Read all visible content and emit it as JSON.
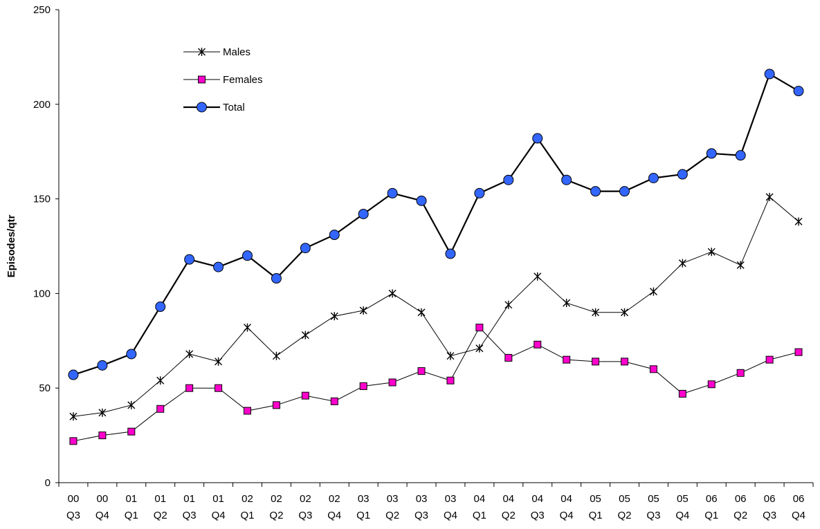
{
  "chart_data": {
    "type": "line",
    "title": "",
    "xlabel": "",
    "ylabel": "Episodes/qtr",
    "ylim": [
      0,
      250
    ],
    "yticks": [
      0,
      50,
      100,
      150,
      200,
      250
    ],
    "grid": false,
    "legend_position": "top-left",
    "categories": [
      [
        "00",
        "Q3"
      ],
      [
        "00",
        "Q4"
      ],
      [
        "01",
        "Q1"
      ],
      [
        "01",
        "Q2"
      ],
      [
        "01",
        "Q3"
      ],
      [
        "01",
        "Q4"
      ],
      [
        "02",
        "Q1"
      ],
      [
        "02",
        "Q2"
      ],
      [
        "02",
        "Q3"
      ],
      [
        "02",
        "Q4"
      ],
      [
        "03",
        "Q1"
      ],
      [
        "03",
        "Q2"
      ],
      [
        "03",
        "Q3"
      ],
      [
        "03",
        "Q4"
      ],
      [
        "04",
        "Q1"
      ],
      [
        "04",
        "Q2"
      ],
      [
        "04",
        "Q3"
      ],
      [
        "04",
        "Q4"
      ],
      [
        "05",
        "Q1"
      ],
      [
        "05",
        "Q2"
      ],
      [
        "05",
        "Q3"
      ],
      [
        "05",
        "Q4"
      ],
      [
        "06",
        "Q1"
      ],
      [
        "06",
        "Q2"
      ],
      [
        "06",
        "Q3"
      ],
      [
        "06",
        "Q4"
      ]
    ],
    "series": [
      {
        "name": "Males",
        "marker": "star",
        "color": "#000000",
        "values": [
          35,
          37,
          41,
          54,
          68,
          64,
          82,
          67,
          78,
          88,
          91,
          100,
          90,
          67,
          71,
          94,
          109,
          95,
          90,
          90,
          101,
          116,
          122,
          115,
          151,
          138
        ]
      },
      {
        "name": "Females",
        "marker": "square",
        "color": "#000000",
        "marker_fill": "#ff00cc",
        "values": [
          22,
          25,
          27,
          39,
          50,
          50,
          38,
          41,
          46,
          43,
          51,
          53,
          59,
          54,
          82,
          66,
          73,
          65,
          64,
          64,
          60,
          47,
          52,
          58,
          65,
          69
        ]
      },
      {
        "name": "Total",
        "marker": "circle",
        "color": "#000000",
        "marker_fill": "#3366ff",
        "values": [
          57,
          62,
          68,
          93,
          118,
          114,
          120,
          108,
          124,
          131,
          142,
          153,
          149,
          121,
          153,
          160,
          182,
          160,
          154,
          154,
          161,
          163,
          174,
          173,
          216,
          207
        ]
      }
    ]
  }
}
